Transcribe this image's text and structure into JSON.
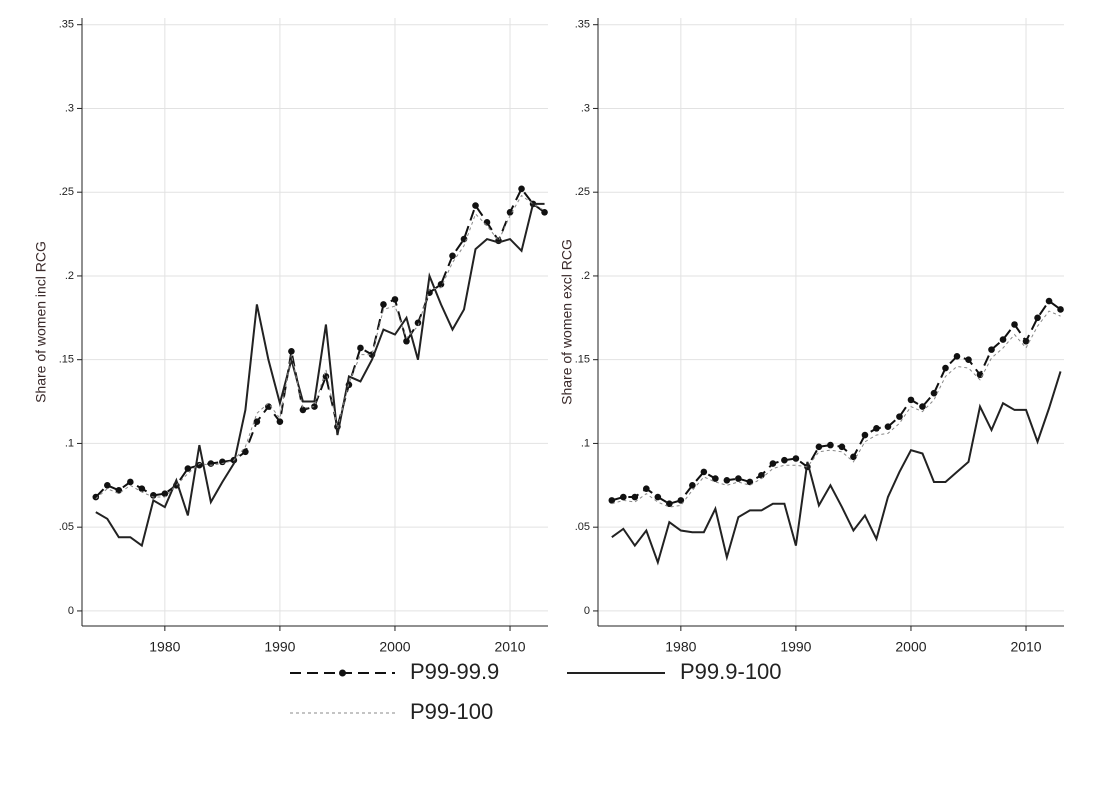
{
  "chart_data": [
    {
      "type": "line",
      "ylabel": "Share of women incl RCG",
      "x": [
        1974,
        1975,
        1976,
        1977,
        1978,
        1979,
        1980,
        1981,
        1982,
        1983,
        1984,
        1985,
        1986,
        1987,
        1988,
        1989,
        1990,
        1991,
        1992,
        1993,
        1994,
        1995,
        1996,
        1997,
        1998,
        1999,
        2000,
        2001,
        2002,
        2003,
        2004,
        2005,
        2006,
        2007,
        2008,
        2009,
        2010,
        2011,
        2012,
        2013
      ],
      "series": [
        {
          "name": "P99-99.9",
          "color": "#111111",
          "line_style": "dash",
          "marker": true,
          "values": [
            0.068,
            0.075,
            0.072,
            0.077,
            0.073,
            0.069,
            0.07,
            0.075,
            0.085,
            0.087,
            0.088,
            0.089,
            0.09,
            0.095,
            0.113,
            0.122,
            0.113,
            0.155,
            0.12,
            0.122,
            0.14,
            0.11,
            0.135,
            0.157,
            0.153,
            0.183,
            0.186,
            0.161,
            0.172,
            0.19,
            0.195,
            0.212,
            0.222,
            0.242,
            0.232,
            0.221,
            0.238,
            0.252,
            0.243,
            0.238
          ]
        },
        {
          "name": "P99.9-100",
          "color": "#222222",
          "line_style": "solid",
          "marker": false,
          "values": [
            0.059,
            0.055,
            0.044,
            0.044,
            0.039,
            0.066,
            0.062,
            0.078,
            0.057,
            0.099,
            0.065,
            0.077,
            0.088,
            0.12,
            0.183,
            0.15,
            0.124,
            0.15,
            0.125,
            0.125,
            0.171,
            0.105,
            0.14,
            0.137,
            0.15,
            0.168,
            0.165,
            0.175,
            0.15,
            0.2,
            0.183,
            0.168,
            0.18,
            0.216,
            0.222,
            0.22,
            0.222,
            0.215,
            0.243,
            0.243
          ]
        },
        {
          "name": "P99-100",
          "color": "#888888",
          "line_style": "dot",
          "marker": false,
          "values": [
            0.067,
            0.073,
            0.07,
            0.075,
            0.071,
            0.068,
            0.068,
            0.075,
            0.082,
            0.088,
            0.087,
            0.088,
            0.09,
            0.098,
            0.118,
            0.124,
            0.115,
            0.153,
            0.121,
            0.122,
            0.144,
            0.109,
            0.136,
            0.153,
            0.153,
            0.18,
            0.182,
            0.163,
            0.17,
            0.192,
            0.193,
            0.208,
            0.218,
            0.237,
            0.23,
            0.221,
            0.236,
            0.248,
            0.243,
            0.239
          ]
        }
      ],
      "xlim": [
        1972.8,
        2013.3
      ],
      "xticks": [
        1980,
        1990,
        2000,
        2010
      ],
      "ylim": [
        -0.009,
        0.354
      ],
      "yticks": [
        0,
        {
          "value": 0.05,
          "label": ".05"
        },
        {
          "value": 0.1,
          "label": ".1"
        },
        {
          "value": 0.15,
          "label": ".15"
        },
        {
          "value": 0.2,
          "label": ".2"
        },
        {
          "value": 0.25,
          "label": ".25"
        },
        {
          "value": 0.3,
          "label": ".3"
        },
        {
          "value": 0.35,
          "label": ".35"
        }
      ],
      "grid": true
    },
    {
      "type": "line",
      "ylabel": "Share of women excl RCG",
      "x": [
        1974,
        1975,
        1976,
        1977,
        1978,
        1979,
        1980,
        1981,
        1982,
        1983,
        1984,
        1985,
        1986,
        1987,
        1988,
        1989,
        1990,
        1991,
        1992,
        1993,
        1994,
        1995,
        1996,
        1997,
        1998,
        1999,
        2000,
        2001,
        2002,
        2003,
        2004,
        2005,
        2006,
        2007,
        2008,
        2009,
        2010,
        2011,
        2012,
        2013
      ],
      "series": [
        {
          "name": "P99-99.9",
          "color": "#111111",
          "line_style": "dash",
          "marker": true,
          "values": [
            0.066,
            0.068,
            0.068,
            0.073,
            0.068,
            0.064,
            0.066,
            0.075,
            0.083,
            0.079,
            0.078,
            0.079,
            0.077,
            0.081,
            0.088,
            0.09,
            0.091,
            0.086,
            0.098,
            0.099,
            0.098,
            0.092,
            0.105,
            0.109,
            0.11,
            0.116,
            0.126,
            0.122,
            0.13,
            0.145,
            0.152,
            0.15,
            0.141,
            0.156,
            0.162,
            0.171,
            0.161,
            0.175,
            0.185,
            0.18
          ]
        },
        {
          "name": "P99.9-100",
          "color": "#222222",
          "line_style": "solid",
          "marker": false,
          "values": [
            0.044,
            0.049,
            0.039,
            0.048,
            0.029,
            0.053,
            0.048,
            0.047,
            0.047,
            0.061,
            0.032,
            0.056,
            0.06,
            0.06,
            0.064,
            0.064,
            0.039,
            0.089,
            0.063,
            0.075,
            0.062,
            0.048,
            0.057,
            0.043,
            0.068,
            0.083,
            0.096,
            0.094,
            0.077,
            0.077,
            0.083,
            0.089,
            0.122,
            0.108,
            0.124,
            0.12,
            0.12,
            0.101,
            0.121,
            0.143
          ]
        },
        {
          "name": "P99-100",
          "color": "#888888",
          "line_style": "dot",
          "marker": false,
          "values": [
            0.064,
            0.066,
            0.065,
            0.07,
            0.065,
            0.062,
            0.063,
            0.072,
            0.08,
            0.077,
            0.075,
            0.077,
            0.075,
            0.079,
            0.085,
            0.087,
            0.087,
            0.086,
            0.095,
            0.096,
            0.095,
            0.089,
            0.101,
            0.105,
            0.106,
            0.112,
            0.122,
            0.119,
            0.126,
            0.14,
            0.146,
            0.145,
            0.138,
            0.151,
            0.157,
            0.165,
            0.157,
            0.17,
            0.179,
            0.176
          ]
        }
      ],
      "xlim": [
        1972.8,
        2013.3
      ],
      "xticks": [
        1980,
        1990,
        2000,
        2010
      ],
      "ylim": [
        -0.009,
        0.354
      ],
      "yticks": [
        0,
        {
          "value": 0.05,
          "label": ".05"
        },
        {
          "value": 0.1,
          "label": ".1"
        },
        {
          "value": 0.15,
          "label": ".15"
        },
        {
          "value": 0.2,
          "label": ".2"
        },
        {
          "value": 0.25,
          "label": ".25"
        },
        {
          "value": 0.3,
          "label": ".3"
        },
        {
          "value": 0.35,
          "label": ".35"
        }
      ],
      "grid": true
    }
  ]
}
